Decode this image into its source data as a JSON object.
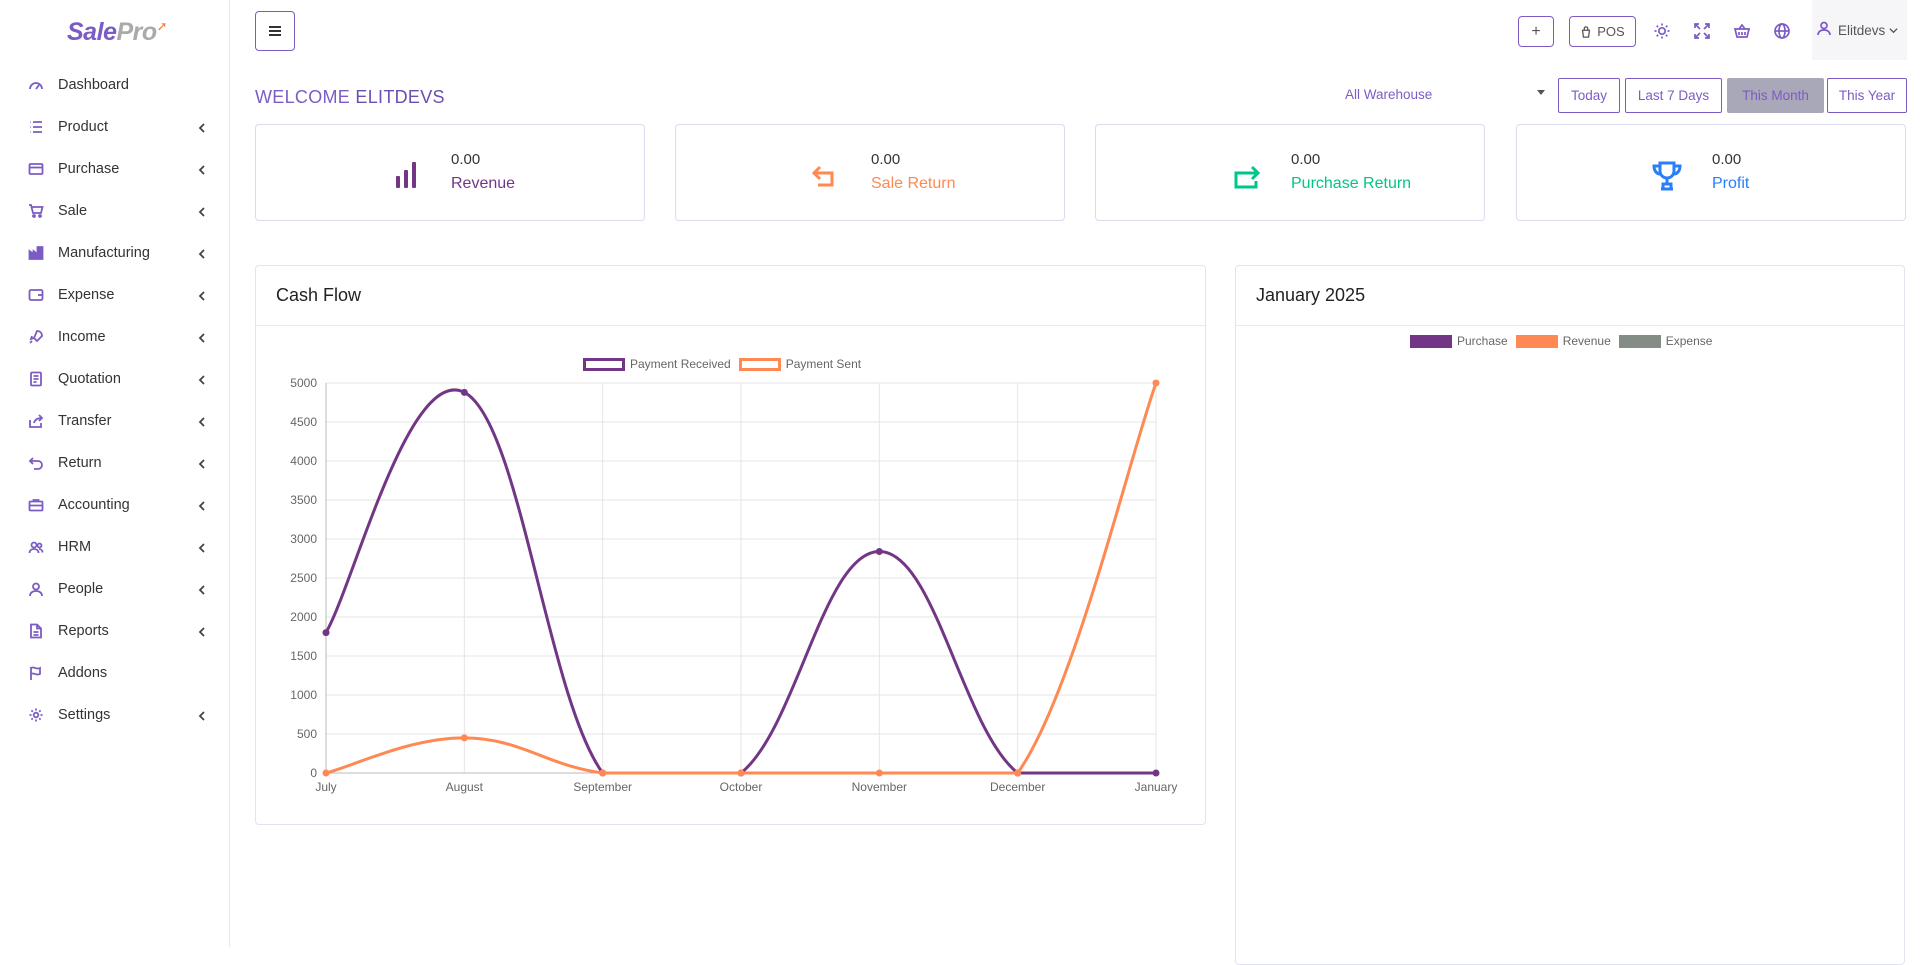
{
  "brand": {
    "name_a": "Sale",
    "name_b": "Pro"
  },
  "sidebar": {
    "items": [
      {
        "label": "Dashboard",
        "icon": "gauge-icon",
        "has_chevron": false
      },
      {
        "label": "Product",
        "icon": "list-icon",
        "has_chevron": true
      },
      {
        "label": "Purchase",
        "icon": "card-icon",
        "has_chevron": true
      },
      {
        "label": "Sale",
        "icon": "cart-icon",
        "has_chevron": true
      },
      {
        "label": "Manufacturing",
        "icon": "factory-icon",
        "has_chevron": true
      },
      {
        "label": "Expense",
        "icon": "wallet-icon",
        "has_chevron": true
      },
      {
        "label": "Income",
        "icon": "rocket-icon",
        "has_chevron": true
      },
      {
        "label": "Quotation",
        "icon": "document-icon",
        "has_chevron": true
      },
      {
        "label": "Transfer",
        "icon": "share-icon",
        "has_chevron": true
      },
      {
        "label": "Return",
        "icon": "return-icon",
        "has_chevron": true
      },
      {
        "label": "Accounting",
        "icon": "briefcase-icon",
        "has_chevron": true
      },
      {
        "label": "HRM",
        "icon": "users-icon",
        "has_chevron": true
      },
      {
        "label": "People",
        "icon": "user-icon",
        "has_chevron": true
      },
      {
        "label": "Reports",
        "icon": "file-icon",
        "has_chevron": true
      },
      {
        "label": "Addons",
        "icon": "flag-icon",
        "has_chevron": false
      },
      {
        "label": "Settings",
        "icon": "gear-icon",
        "has_chevron": true
      }
    ]
  },
  "topbar": {
    "add_label": "+",
    "pos_label": "POS",
    "user_name": "Elitdevs"
  },
  "welcome": {
    "prefix": "WELCOME",
    "name": "ELITDEVS"
  },
  "filters": {
    "warehouse": "All Warehouse",
    "periods": [
      "Today",
      "Last 7 Days",
      "This Month",
      "This Year"
    ],
    "active_period": "This Month"
  },
  "stats": [
    {
      "value": "0.00",
      "label": "Revenue",
      "color": "#733686",
      "icon": "bar-chart-icon"
    },
    {
      "value": "0.00",
      "label": "Sale Return",
      "color": "#ff8952",
      "icon": "return-arrow-icon"
    },
    {
      "value": "0.00",
      "label": "Purchase Return",
      "color": "#00c689",
      "icon": "purchase-return-icon"
    },
    {
      "value": "0.00",
      "label": "Profit",
      "color": "#297ff9",
      "icon": "trophy-icon"
    }
  ],
  "cashflow": {
    "title": "Cash Flow",
    "legend": [
      "Payment Received",
      "Payment Sent"
    ]
  },
  "month_panel": {
    "title": "January 2025",
    "legend": [
      "Purchase",
      "Revenue",
      "Expense"
    ],
    "legend_colors": [
      "#733686",
      "#ff8952",
      "#858c85"
    ]
  },
  "chart_data": {
    "type": "line",
    "categories": [
      "July",
      "August",
      "September",
      "October",
      "November",
      "December",
      "January"
    ],
    "series": [
      {
        "name": "Payment Received",
        "color": "#733686",
        "values": [
          1800,
          4880,
          0,
          0,
          2840,
          0,
          0
        ]
      },
      {
        "name": "Payment Sent",
        "color": "#ff8952",
        "values": [
          0,
          450,
          0,
          0,
          0,
          0,
          5000
        ]
      }
    ],
    "ylim": [
      0,
      5000
    ],
    "yticks": [
      0,
      500,
      1000,
      1500,
      2000,
      2500,
      3000,
      3500,
      4000,
      4500,
      5000
    ],
    "grid": true,
    "legend_position": "top"
  }
}
